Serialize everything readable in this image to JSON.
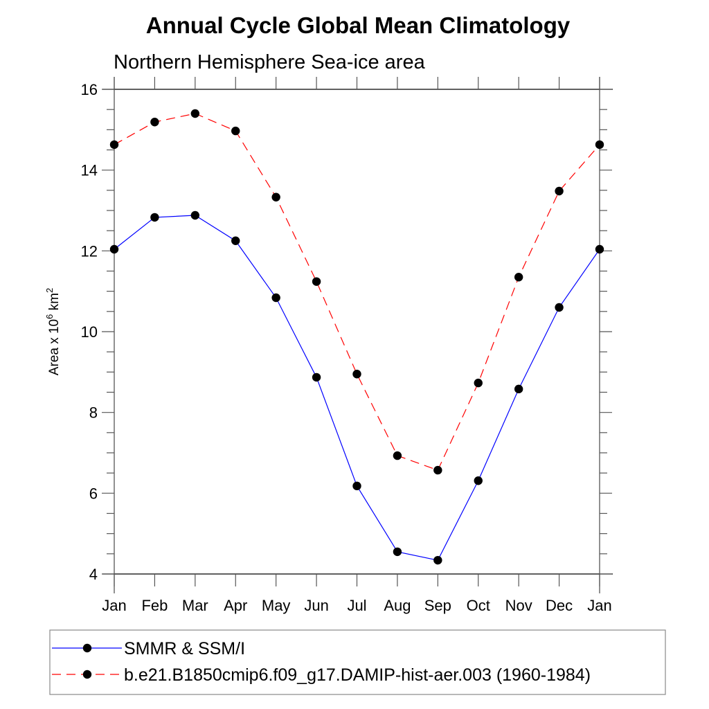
{
  "chart_data": {
    "type": "line",
    "title": "Annual Cycle Global Mean Climatology",
    "subtitle": "Northern Hemisphere Sea-ice area",
    "xlabel": "",
    "ylabel": {
      "base": "Area x 10",
      "exp1": "6",
      "mid": " km",
      "exp2": "2"
    },
    "categories": [
      "Jan",
      "Feb",
      "Mar",
      "Apr",
      "May",
      "Jun",
      "Jul",
      "Aug",
      "Sep",
      "Oct",
      "Nov",
      "Dec",
      "Jan"
    ],
    "ylim": [
      4,
      16
    ],
    "yticks": [
      4,
      6,
      8,
      10,
      12,
      14,
      16
    ],
    "yticks_labels": [
      "4",
      "6",
      "8",
      "10",
      "12",
      "14",
      "16"
    ],
    "y_minor_step": 0.5,
    "grid": false,
    "legend_position": "bottom",
    "series": [
      {
        "name": "SMMR & SSM/I",
        "color": "#0000ff",
        "dash": "solid",
        "marker": "filled-circle",
        "values": [
          12.04,
          12.83,
          12.88,
          12.25,
          10.84,
          8.87,
          6.18,
          4.55,
          4.34,
          6.31,
          8.58,
          10.6,
          12.04
        ]
      },
      {
        "name": "b.e21.B1850cmip6.f09_g17.DAMIP-hist-aer.003 (1960-1984)",
        "color": "#ff0000",
        "dash": "dashed",
        "marker": "filled-circle",
        "values": [
          14.63,
          15.19,
          15.4,
          14.97,
          13.33,
          11.24,
          8.95,
          6.93,
          6.57,
          8.73,
          11.35,
          13.48,
          14.63
        ]
      }
    ]
  }
}
